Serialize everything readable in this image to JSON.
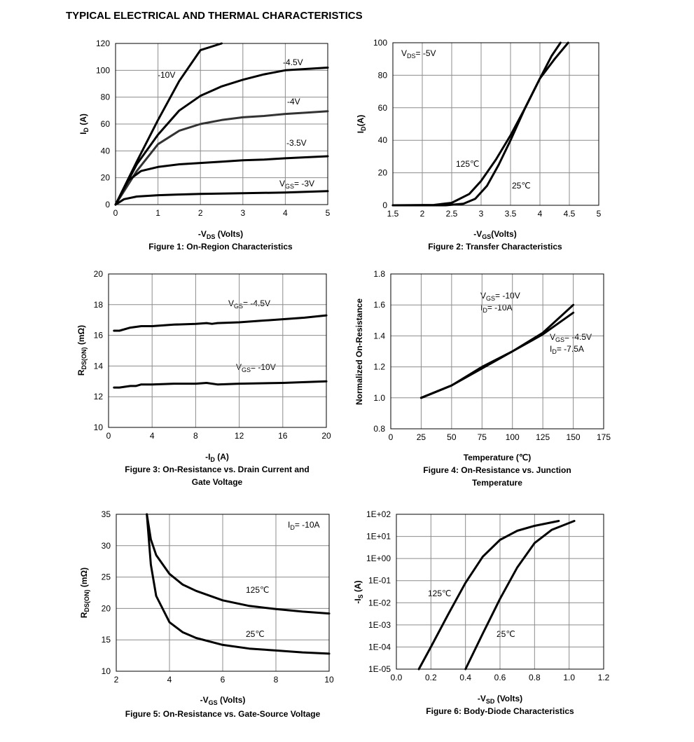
{
  "page": {
    "title": "TYPICAL ELECTRICAL AND THERMAL CHARACTERISTICS"
  },
  "chart_data": [
    {
      "type": "line",
      "caption": "Figure 1: On-Region Characteristics",
      "xlabel": "-VDS (Volts)",
      "ylabel": "ID (A)",
      "xlim": [
        0,
        5
      ],
      "ylim": [
        0,
        120
      ],
      "xticks": [
        0,
        1,
        2,
        3,
        4,
        5
      ],
      "yticks": [
        0,
        20,
        40,
        60,
        80,
        100,
        120
      ],
      "grid": true,
      "series": [
        {
          "name": "-10V",
          "points": [
            [
              0,
              0
            ],
            [
              0.5,
              32
            ],
            [
              1,
              63
            ],
            [
              1.5,
              92
            ],
            [
              2,
              115
            ],
            [
              2.5,
              135
            ]
          ]
        },
        {
          "name": "-4.5V",
          "points": [
            [
              0,
              0
            ],
            [
              0.5,
              30
            ],
            [
              1,
              52
            ],
            [
              1.5,
              70
            ],
            [
              2,
              81
            ],
            [
              2.5,
              88
            ],
            [
              3,
              93
            ],
            [
              3.5,
              97
            ],
            [
              4,
              100
            ],
            [
              4.5,
              101
            ],
            [
              5,
              102
            ]
          ]
        },
        {
          "name": "-4V",
          "points": [
            [
              0,
              0
            ],
            [
              0.5,
              25
            ],
            [
              1,
              45
            ],
            [
              1.5,
              55
            ],
            [
              2,
              60
            ],
            [
              2.5,
              63
            ],
            [
              3,
              65
            ],
            [
              3.5,
              66
            ],
            [
              4,
              67.5
            ],
            [
              4.5,
              68.5
            ],
            [
              5,
              69.5
            ]
          ]
        },
        {
          "name": "-3.5V",
          "points": [
            [
              0,
              0
            ],
            [
              0.3,
              18
            ],
            [
              0.6,
              25
            ],
            [
              1,
              28
            ],
            [
              1.5,
              30
            ],
            [
              2,
              31
            ],
            [
              2.5,
              32
            ],
            [
              3,
              33
            ],
            [
              3.5,
              33.5
            ],
            [
              4,
              34.5
            ],
            [
              5,
              36
            ]
          ]
        },
        {
          "name": "VGS= -3V",
          "points": [
            [
              0,
              0
            ],
            [
              0.2,
              4
            ],
            [
              0.5,
              6
            ],
            [
              1,
              7
            ],
            [
              1.5,
              7.5
            ],
            [
              2,
              8
            ],
            [
              3,
              8.5
            ],
            [
              4,
              9
            ],
            [
              5,
              10
            ]
          ]
        }
      ],
      "annotations": [
        "-10V",
        "-4.5V",
        "-4V",
        "-3.5V",
        "VGS= -3V"
      ]
    },
    {
      "type": "line",
      "caption": "Figure 2: Transfer Characteristics",
      "xlabel": "-VGS(Volts)",
      "ylabel": "ID(A)",
      "xlim": [
        1.5,
        5
      ],
      "ylim": [
        0,
        100
      ],
      "xticks": [
        1.5,
        2,
        2.5,
        3,
        3.5,
        4,
        4.5,
        5
      ],
      "yticks": [
        0,
        20,
        40,
        60,
        80,
        100
      ],
      "grid": true,
      "series": [
        {
          "name": "125℃",
          "points": [
            [
              1.5,
              0
            ],
            [
              2.2,
              0.2
            ],
            [
              2.5,
              1.5
            ],
            [
              2.8,
              7
            ],
            [
              3,
              15
            ],
            [
              3.25,
              28
            ],
            [
              3.5,
              43
            ],
            [
              3.75,
              60
            ],
            [
              4,
              78
            ],
            [
              4.2,
              92
            ],
            [
              4.35,
              100
            ]
          ]
        },
        {
          "name": "25℃",
          "points": [
            [
              1.5,
              0
            ],
            [
              2.4,
              0
            ],
            [
              2.7,
              1
            ],
            [
              2.9,
              4
            ],
            [
              3.1,
              12
            ],
            [
              3.3,
              25
            ],
            [
              3.5,
              40
            ],
            [
              3.75,
              60
            ],
            [
              4,
              78
            ],
            [
              4.25,
              90
            ],
            [
              4.48,
              100
            ]
          ]
        }
      ],
      "annotations": [
        "VDS= -5V",
        "125℃",
        "25℃"
      ]
    },
    {
      "type": "line",
      "caption": "Figure 3: On-Resistance vs. Drain Current and Gate Voltage",
      "xlabel": "-ID (A)",
      "ylabel": "RDS(ON) (mΩ)",
      "xlim": [
        0,
        20
      ],
      "ylim": [
        10,
        20
      ],
      "xticks": [
        0,
        4,
        8,
        12,
        16,
        20
      ],
      "yticks": [
        10,
        12,
        14,
        16,
        18,
        20
      ],
      "grid": true,
      "series": [
        {
          "name": "VGS= -4.5V",
          "points": [
            [
              0.5,
              16.3
            ],
            [
              1,
              16.3
            ],
            [
              2,
              16.5
            ],
            [
              3,
              16.6
            ],
            [
              4,
              16.6
            ],
            [
              6,
              16.7
            ],
            [
              8,
              16.75
            ],
            [
              9,
              16.8
            ],
            [
              9.5,
              16.75
            ],
            [
              10,
              16.8
            ],
            [
              12,
              16.85
            ],
            [
              14,
              16.95
            ],
            [
              16,
              17.05
            ],
            [
              18,
              17.15
            ],
            [
              20,
              17.3
            ]
          ]
        },
        {
          "name": "VGS= -10V",
          "points": [
            [
              0.5,
              12.6
            ],
            [
              1,
              12.6
            ],
            [
              2,
              12.7
            ],
            [
              2.5,
              12.7
            ],
            [
              3,
              12.8
            ],
            [
              4,
              12.8
            ],
            [
              6,
              12.85
            ],
            [
              8,
              12.85
            ],
            [
              9,
              12.9
            ],
            [
              10,
              12.8
            ],
            [
              12,
              12.85
            ],
            [
              16,
              12.9
            ],
            [
              20,
              13.0
            ]
          ]
        }
      ],
      "annotations": [
        "VGS= -4.5V",
        "VGS= -10V"
      ]
    },
    {
      "type": "line",
      "caption": "Figure 4: On-Resistance vs. Junction Temperature",
      "xlabel": "Temperature (℃)",
      "ylabel": "Normalized On-Resistance",
      "xlim": [
        0,
        175
      ],
      "ylim": [
        0.8,
        1.8
      ],
      "xticks": [
        0,
        25,
        50,
        75,
        100,
        125,
        150,
        175
      ],
      "yticks": [
        0.8,
        1.0,
        1.2,
        1.4,
        1.6,
        1.8
      ],
      "ytick_labels": [
        "0.8",
        "1.0",
        "1.2",
        "1.4",
        "1.6",
        "1.8"
      ],
      "grid": true,
      "series": [
        {
          "name": "VGS= -10V ID= -10A",
          "points": [
            [
              25,
              1.0
            ],
            [
              50,
              1.08
            ],
            [
              75,
              1.19
            ],
            [
              100,
              1.3
            ],
            [
              125,
              1.42
            ],
            [
              150,
              1.6
            ]
          ]
        },
        {
          "name": "VGS= -4.5V ID= -7.5A",
          "points": [
            [
              25,
              1.0
            ],
            [
              50,
              1.08
            ],
            [
              75,
              1.2
            ],
            [
              100,
              1.3
            ],
            [
              125,
              1.41
            ],
            [
              150,
              1.55
            ]
          ]
        }
      ],
      "annotations": [
        "VGS= -10V",
        "ID= -10A",
        "VGS= -4.5V",
        "ID= -7.5A"
      ]
    },
    {
      "type": "line",
      "caption": "Figure 5: On-Resistance vs. Gate-Source Voltage",
      "xlabel": "-VGS (Volts)",
      "ylabel": "RDS(ON) (mΩ)",
      "xlim": [
        2,
        10
      ],
      "ylim": [
        10,
        35
      ],
      "xticks": [
        2,
        4,
        6,
        8,
        10
      ],
      "yticks": [
        10,
        15,
        20,
        25,
        30,
        35
      ],
      "grid": true,
      "series": [
        {
          "name": "125℃",
          "points": [
            [
              3.15,
              35
            ],
            [
              3.3,
              31
            ],
            [
              3.5,
              28.5
            ],
            [
              4,
              25.5
            ],
            [
              4.5,
              23.8
            ],
            [
              5,
              22.8
            ],
            [
              6,
              21.3
            ],
            [
              7,
              20.4
            ],
            [
              8,
              19.9
            ],
            [
              9,
              19.5
            ],
            [
              10,
              19.2
            ]
          ]
        },
        {
          "name": "25℃",
          "points": [
            [
              3.15,
              35
            ],
            [
              3.3,
              27
            ],
            [
              3.5,
              22
            ],
            [
              4,
              17.8
            ],
            [
              4.5,
              16.2
            ],
            [
              5,
              15.3
            ],
            [
              6,
              14.2
            ],
            [
              7,
              13.6
            ],
            [
              8,
              13.3
            ],
            [
              9,
              13.0
            ],
            [
              10,
              12.8
            ]
          ]
        }
      ],
      "annotations": [
        "ID= -10A",
        "125℃",
        "25℃"
      ]
    },
    {
      "type": "line",
      "caption": "Figure 6: Body-Diode Characteristics",
      "xlabel": "-VSD (Volts)",
      "ylabel": "-IS (A)",
      "xlim": [
        0.0,
        1.2
      ],
      "ylim": [
        1e-05,
        100
      ],
      "yscale": "log",
      "xticks": [
        0.0,
        0.2,
        0.4,
        0.6,
        0.8,
        1.0,
        1.2
      ],
      "xtick_labels": [
        "0.0",
        "0.2",
        "0.4",
        "0.6",
        "0.8",
        "1.0",
        "1.2"
      ],
      "yticks": [
        1e-05,
        0.0001,
        0.001,
        0.01,
        0.1,
        1,
        10,
        100
      ],
      "ytick_labels": [
        "1E-05",
        "1E-04",
        "1E-03",
        "1E-02",
        "1E-01",
        "1E+00",
        "1E+01",
        "1E+02"
      ],
      "grid": true,
      "series": [
        {
          "name": "125℃",
          "points": [
            [
              0.13,
              1e-05
            ],
            [
              0.2,
              0.0001
            ],
            [
              0.3,
              0.003
            ],
            [
              0.4,
              0.08
            ],
            [
              0.5,
              1.2
            ],
            [
              0.6,
              7
            ],
            [
              0.7,
              18
            ],
            [
              0.8,
              30
            ],
            [
              0.94,
              50
            ]
          ]
        },
        {
          "name": "25℃",
          "points": [
            [
              0.4,
              1e-05
            ],
            [
              0.5,
              0.0004
            ],
            [
              0.6,
              0.015
            ],
            [
              0.7,
              0.4
            ],
            [
              0.8,
              5
            ],
            [
              0.9,
              20
            ],
            [
              1.03,
              50
            ]
          ]
        }
      ],
      "annotations": [
        "125℃",
        "25℃"
      ]
    }
  ],
  "labels": {
    "f1": {
      "caption": "Figure 1: On-Region Characteristics",
      "ylabel_main": "I",
      "ylabel_sub": "D",
      "ylabel_tail": " (A)",
      "xlabel_main": "-V",
      "xlabel_sub": "DS",
      "xlabel_tail": " (Volts)",
      "a1": "-10V",
      "a2": "-4.5V",
      "a3": "-4V",
      "a4": "-3.5V",
      "a5_main": "V",
      "a5_sub": "GS",
      "a5_tail": "= -3V"
    },
    "f2": {
      "caption": "Figure 2: Transfer Characteristics",
      "ylabel_main": "I",
      "ylabel_sub": "D",
      "ylabel_tail": "(A)",
      "xlabel_main": "-V",
      "xlabel_sub": "GS",
      "xlabel_tail": "(Volts)",
      "a1_main": "V",
      "a1_sub": "DS",
      "a1_tail": "= -5V",
      "a2": "125℃",
      "a3": "25℃"
    },
    "f3": {
      "caption1": "Figure 3: On-Resistance vs. Drain Current and",
      "caption2": "Gate Voltage",
      "ylabel_main": "R",
      "ylabel_sub": "DS(ON)",
      "ylabel_tail": " (mΩ)",
      "xlabel_main": "-I",
      "xlabel_sub": "D",
      "xlabel_tail": " (A)",
      "a1_main": "V",
      "a1_sub": "GS",
      "a1_tail": "= -4.5V",
      "a2_main": "V",
      "a2_sub": "GS",
      "a2_tail": "= -10V"
    },
    "f4": {
      "caption1": "Figure 4: On-Resistance vs. Junction",
      "caption2": "Temperature",
      "ylabel": "Normalized On-Resistance",
      "xlabel": "Temperature (℃)",
      "a1_main": "V",
      "a1_sub": "GS",
      "a1_tail": "= -10V",
      "a2_main": "I",
      "a2_sub": "D",
      "a2_tail": "= -10A",
      "a3_main": "V",
      "a3_sub": "GS",
      "a3_tail": "= -4.5V",
      "a4_main": "I",
      "a4_sub": "D",
      "a4_tail": "= -7.5A"
    },
    "f5": {
      "caption": "Figure 5: On-Resistance vs. Gate-Source Voltage",
      "ylabel_main": "R",
      "ylabel_sub": "DS(ON)",
      "ylabel_tail": " (mΩ)",
      "xlabel_main": "-V",
      "xlabel_sub": "GS",
      "xlabel_tail": " (Volts)",
      "a1_main": "I",
      "a1_sub": "D",
      "a1_tail": "= -10A",
      "a2": "125℃",
      "a3": "25℃"
    },
    "f6": {
      "caption": "Figure 6: Body-Diode Characteristics",
      "ylabel_main": "-I",
      "ylabel_sub": "S",
      "ylabel_tail": " (A)",
      "xlabel_main": "-V",
      "xlabel_sub": "SD",
      "xlabel_tail": " (Volts)",
      "a1": "125℃",
      "a2": "25℃"
    }
  }
}
